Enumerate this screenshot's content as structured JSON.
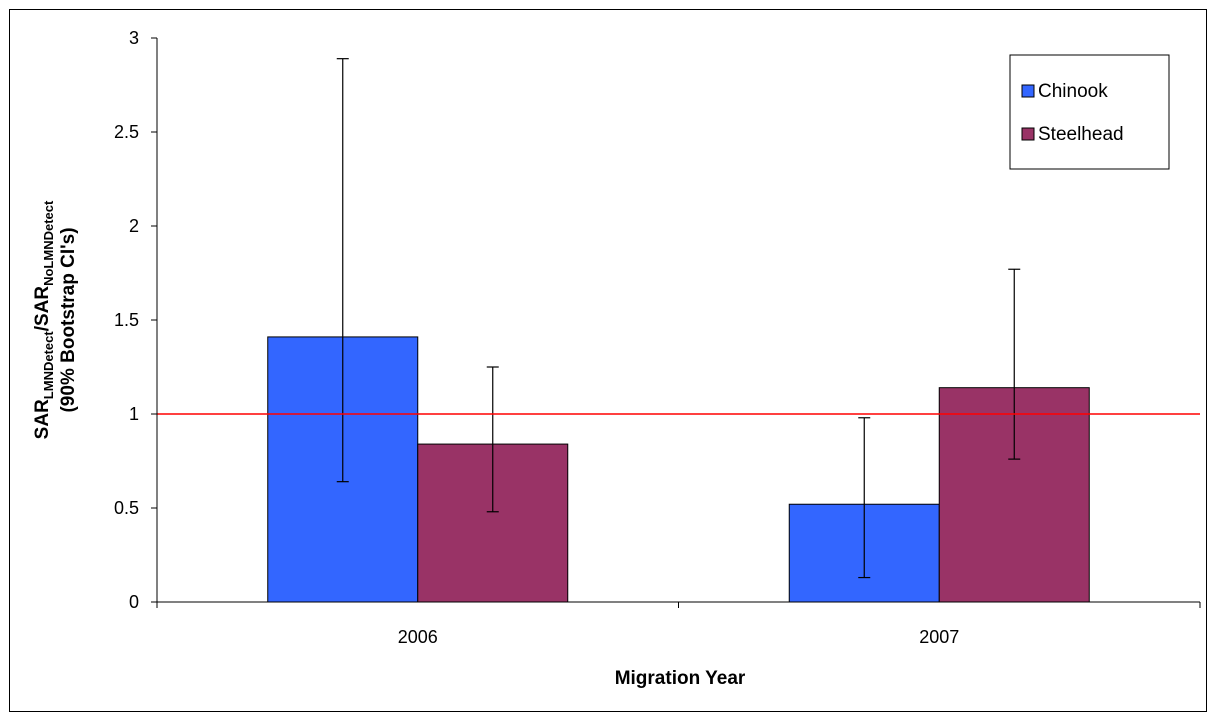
{
  "chart_data": {
    "type": "bar",
    "categories": [
      "2006",
      "2007"
    ],
    "series": [
      {
        "name": "Chinook",
        "color": "#3366ff",
        "values": [
          1.41,
          0.52
        ],
        "ci_low": [
          0.64,
          0.13
        ],
        "ci_high": [
          2.89,
          0.98
        ]
      },
      {
        "name": "Steelhead",
        "color": "#993366",
        "values": [
          0.84,
          1.14
        ],
        "ci_low": [
          0.48,
          0.76
        ],
        "ci_high": [
          1.25,
          1.77
        ]
      }
    ],
    "reference_line": {
      "y": 1,
      "color": "#ff0000"
    },
    "xlabel": "Migration Year",
    "ylabel": {
      "line1_prefix": "SAR",
      "line1_sub1": "LMNDetect",
      "line1_mid": "/SAR",
      "line1_sub2": "NoLMNDetect",
      "line2": "(90% Bootstrap CI's)"
    },
    "ylim": [
      0,
      3
    ],
    "yticks": [
      "0",
      "0.5",
      "1",
      "1.5",
      "2",
      "2.5",
      "3"
    ],
    "grid": false,
    "legend_position": "top-right"
  }
}
